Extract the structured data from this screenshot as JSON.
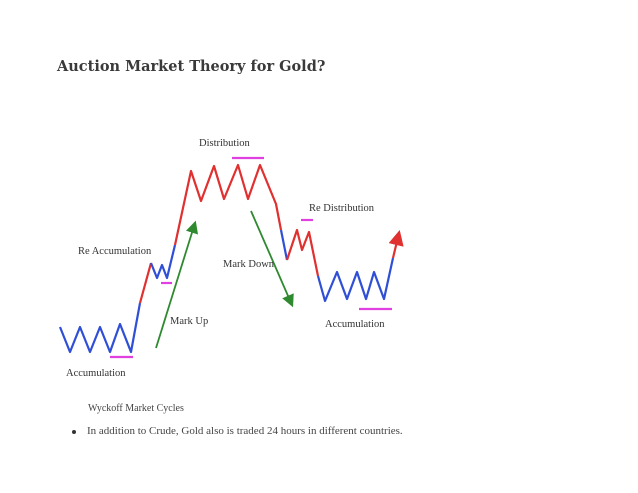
{
  "page": {
    "title": "Auction Market Theory for Gold?",
    "caption": "Wyckoff Market Cycles",
    "bullets": [
      "In addition to Crude, Gold also is traded 24 hours in different countries."
    ]
  },
  "diagram": {
    "labels": {
      "accumulation_left": "Accumulation",
      "re_accumulation": "Re Accumulation",
      "mark_up": "Mark Up",
      "distribution": "Distribution",
      "mark_down": "Mark Down",
      "re_distribution": "Re Distribution",
      "accumulation_right": "Accumulation"
    },
    "colors": {
      "blue": "#2f4fd6",
      "red": "#e03030",
      "green": "#2f8a2f",
      "magenta": "#e040e0",
      "label": "#333333"
    }
  }
}
